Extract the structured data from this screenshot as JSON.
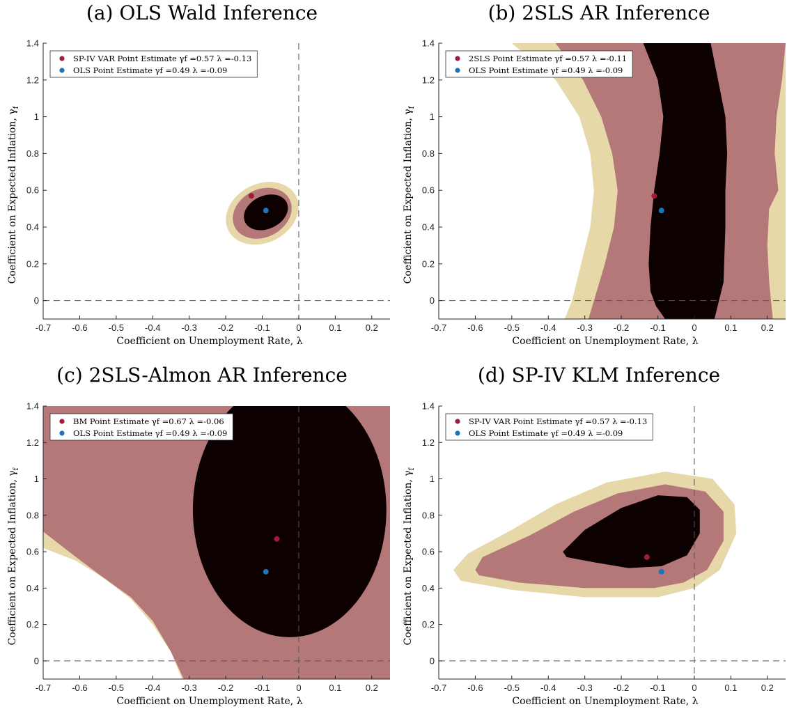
{
  "colors": {
    "inner": "#0d0000",
    "middle": "#b47878",
    "outer": "#e6d8a8",
    "marker_red": "#a01c38",
    "marker_blue": "#1f73b7",
    "ref_line": "#555555"
  },
  "chart_data": [
    {
      "id": "a",
      "type": "scatter",
      "title": "(a) OLS Wald Inference",
      "xlabel": "Coefficient on Unemployment Rate, λ",
      "ylabel": "Coefficient on Expected Inflation, γ",
      "ylabel_sub": "f",
      "xlim": [
        -0.7,
        0.25
      ],
      "ylim": [
        -0.1,
        1.4
      ],
      "xticks": [
        -0.7,
        -0.6,
        -0.5,
        -0.4,
        -0.3,
        -0.2,
        -0.1,
        0,
        0.1,
        0.2
      ],
      "yticks": [
        0,
        0.2,
        0.4,
        0.6,
        0.8,
        1,
        1.2,
        1.4
      ],
      "ref_lines": {
        "x": 0,
        "y": 0
      },
      "regions": [
        {
          "level": "outer",
          "shape": "ellipse",
          "center": [
            -0.1,
            0.475
          ],
          "radii": [
            0.104,
            0.16
          ],
          "angle_deg": 27
        },
        {
          "level": "middle",
          "shape": "ellipse",
          "center": [
            -0.1,
            0.475
          ],
          "radii": [
            0.084,
            0.13
          ],
          "angle_deg": 27
        },
        {
          "level": "inner",
          "shape": "ellipse",
          "center": [
            -0.09,
            0.48
          ],
          "radii": [
            0.063,
            0.09
          ],
          "angle_deg": 25
        }
      ],
      "points": [
        {
          "label": "SP-IV VAR Point Estimate γf =0.57 λ =-0.13",
          "x": -0.13,
          "y": 0.57,
          "color": "marker_red"
        },
        {
          "label": "OLS Point Estimate γf =0.49 λ =-0.09",
          "x": -0.09,
          "y": 0.49,
          "color": "marker_blue"
        }
      ]
    },
    {
      "id": "b",
      "type": "scatter",
      "title": "(b) 2SLS AR Inference",
      "xlabel": "Coefficient on Unemployment Rate, λ",
      "ylabel": "Coefficient on Expected Inflation, γ",
      "ylabel_sub": "f",
      "xlim": [
        -0.7,
        0.25
      ],
      "ylim": [
        -0.1,
        1.4
      ],
      "xticks": [
        -0.7,
        -0.6,
        -0.5,
        -0.4,
        -0.3,
        -0.2,
        -0.1,
        0,
        0.1,
        0.2
      ],
      "yticks": [
        0,
        0.2,
        0.4,
        0.6,
        0.8,
        1,
        1.2,
        1.4
      ],
      "ref_lines": {
        "x": null,
        "y": 0
      },
      "regions": [
        {
          "level": "outer",
          "shape": "polygon",
          "points": [
            [
              -0.5,
              1.4
            ],
            [
              -0.38,
              1.2
            ],
            [
              -0.315,
              1.0
            ],
            [
              -0.285,
              0.8
            ],
            [
              -0.275,
              0.6
            ],
            [
              -0.285,
              0.4
            ],
            [
              -0.31,
              0.2
            ],
            [
              -0.335,
              0
            ],
            [
              -0.355,
              -0.1
            ],
            [
              0.25,
              -0.1
            ],
            [
              0.25,
              1.4
            ]
          ]
        },
        {
          "level": "middle",
          "shape": "polygon",
          "points": [
            [
              -0.38,
              1.4
            ],
            [
              -0.305,
              1.2
            ],
            [
              -0.255,
              1.0
            ],
            [
              -0.225,
              0.8
            ],
            [
              -0.21,
              0.6
            ],
            [
              -0.22,
              0.4
            ],
            [
              -0.245,
              0.2
            ],
            [
              -0.275,
              0
            ],
            [
              -0.29,
              -0.1
            ],
            [
              0.215,
              -0.1
            ],
            [
              0.205,
              0.1
            ],
            [
              0.2,
              0.3
            ],
            [
              0.205,
              0.5
            ],
            [
              0.23,
              0.6
            ],
            [
              0.22,
              0.8
            ],
            [
              0.225,
              1.0
            ],
            [
              0.24,
              1.2
            ],
            [
              0.25,
              1.4
            ]
          ]
        },
        {
          "level": "inner",
          "shape": "polygon",
          "points": [
            [
              -0.14,
              1.4
            ],
            [
              -0.1,
              1.2
            ],
            [
              -0.085,
              1.0
            ],
            [
              -0.095,
              0.8
            ],
            [
              -0.11,
              0.6
            ],
            [
              -0.12,
              0.4
            ],
            [
              -0.125,
              0.2
            ],
            [
              -0.12,
              0.05
            ],
            [
              -0.105,
              -0.03
            ],
            [
              -0.08,
              -0.1
            ],
            [
              0.055,
              -0.1
            ],
            [
              0.08,
              0.1
            ],
            [
              0.085,
              0.4
            ],
            [
              0.085,
              0.6
            ],
            [
              0.09,
              0.8
            ],
            [
              0.085,
              1.0
            ],
            [
              0.065,
              1.2
            ],
            [
              0.045,
              1.4
            ]
          ]
        }
      ],
      "points": [
        {
          "label": "2SLS Point Estimate γf =0.57 λ =-0.11",
          "x": -0.11,
          "y": 0.57,
          "color": "marker_red"
        },
        {
          "label": "OLS Point Estimate γf =0.49 λ =-0.09",
          "x": -0.09,
          "y": 0.49,
          "color": "marker_blue"
        }
      ]
    },
    {
      "id": "c",
      "type": "scatter",
      "title": "(c) 2SLS-Almon AR Inference",
      "xlabel": "Coefficient on Unemployment Rate, λ",
      "ylabel": "Coefficient on Expected Inflation, γ",
      "ylabel_sub": "f",
      "xlim": [
        -0.7,
        0.25
      ],
      "ylim": [
        -0.1,
        1.4
      ],
      "xticks": [
        -0.7,
        -0.6,
        -0.5,
        -0.4,
        -0.3,
        -0.2,
        -0.1,
        0,
        0.1,
        0.2
      ],
      "yticks": [
        0,
        0.2,
        0.4,
        0.6,
        0.8,
        1,
        1.2,
        1.4
      ],
      "ref_lines": {
        "x": 0,
        "y": 0
      },
      "regions": [
        {
          "level": "outer",
          "shape": "polygon",
          "points": [
            [
              -0.7,
              1.4
            ],
            [
              0.25,
              1.4
            ],
            [
              0.25,
              -0.1
            ],
            [
              -0.32,
              -0.1
            ],
            [
              -0.35,
              0.05
            ],
            [
              -0.4,
              0.2
            ],
            [
              -0.46,
              0.34
            ],
            [
              -0.53,
              0.45
            ],
            [
              -0.61,
              0.55
            ],
            [
              -0.7,
              0.62
            ]
          ]
        },
        {
          "level": "middle",
          "shape": "polygon",
          "points": [
            [
              -0.7,
              1.4
            ],
            [
              0.25,
              1.4
            ],
            [
              0.25,
              -0.1
            ],
            [
              -0.315,
              -0.1
            ],
            [
              -0.35,
              0.05
            ],
            [
              -0.4,
              0.22
            ],
            [
              -0.46,
              0.35
            ],
            [
              -0.53,
              0.45
            ],
            [
              -0.61,
              0.57
            ],
            [
              -0.7,
              0.71
            ]
          ]
        },
        {
          "level": "inner",
          "shape": "ellipse",
          "center": [
            -0.025,
            0.83
          ],
          "radii": [
            0.265,
            0.7
          ],
          "angle_deg": 0
        }
      ],
      "points": [
        {
          "label": "BM Point Estimate γf =0.67 λ =-0.06",
          "x": -0.06,
          "y": 0.67,
          "color": "marker_red"
        },
        {
          "label": "OLS Point Estimate γf =0.49 λ =-0.09",
          "x": -0.09,
          "y": 0.49,
          "color": "marker_blue"
        }
      ]
    },
    {
      "id": "d",
      "type": "scatter",
      "title": "(d) SP-IV KLM Inference",
      "xlabel": "Coefficient on Unemployment Rate, λ",
      "ylabel": "Coefficient on Expected Inflation, γ",
      "ylabel_sub": "f",
      "xlim": [
        -0.7,
        0.25
      ],
      "ylim": [
        -0.1,
        1.4
      ],
      "xticks": [
        -0.7,
        -0.6,
        -0.5,
        -0.4,
        -0.3,
        -0.2,
        -0.1,
        0,
        0.1,
        0.2
      ],
      "yticks": [
        0,
        0.2,
        0.4,
        0.6,
        0.8,
        1,
        1.2,
        1.4
      ],
      "ref_lines": {
        "x": 0,
        "y": 0
      },
      "regions": [
        {
          "level": "outer",
          "shape": "polygon",
          "points": [
            [
              -0.66,
              0.5
            ],
            [
              -0.62,
              0.59
            ],
            [
              -0.5,
              0.72
            ],
            [
              -0.38,
              0.86
            ],
            [
              -0.24,
              0.98
            ],
            [
              -0.08,
              1.04
            ],
            [
              0.05,
              1.0
            ],
            [
              0.11,
              0.86
            ],
            [
              0.115,
              0.7
            ],
            [
              0.07,
              0.5
            ],
            [
              0.0,
              0.4
            ],
            [
              -0.1,
              0.35
            ],
            [
              -0.3,
              0.35
            ],
            [
              -0.5,
              0.39
            ],
            [
              -0.64,
              0.44
            ]
          ]
        },
        {
          "level": "middle",
          "shape": "polygon",
          "points": [
            [
              -0.6,
              0.5
            ],
            [
              -0.58,
              0.57
            ],
            [
              -0.45,
              0.69
            ],
            [
              -0.33,
              0.82
            ],
            [
              -0.21,
              0.92
            ],
            [
              -0.08,
              0.97
            ],
            [
              0.03,
              0.93
            ],
            [
              0.08,
              0.82
            ],
            [
              0.08,
              0.66
            ],
            [
              0.035,
              0.5
            ],
            [
              -0.03,
              0.43
            ],
            [
              -0.11,
              0.4
            ],
            [
              -0.3,
              0.4
            ],
            [
              -0.48,
              0.43
            ],
            [
              -0.59,
              0.47
            ]
          ]
        },
        {
          "level": "inner",
          "shape": "polygon",
          "points": [
            [
              -0.36,
              0.6
            ],
            [
              -0.3,
              0.72
            ],
            [
              -0.2,
              0.84
            ],
            [
              -0.1,
              0.91
            ],
            [
              -0.02,
              0.9
            ],
            [
              0.015,
              0.83
            ],
            [
              0.015,
              0.7
            ],
            [
              -0.02,
              0.58
            ],
            [
              -0.09,
              0.52
            ],
            [
              -0.18,
              0.51
            ],
            [
              -0.27,
              0.54
            ],
            [
              -0.35,
              0.57
            ]
          ]
        }
      ],
      "points": [
        {
          "label": "SP-IV VAR Point Estimate γf =0.57 λ =-0.13",
          "x": -0.13,
          "y": 0.57,
          "color": "marker_red"
        },
        {
          "label": "OLS Point Estimate γf =0.49 λ =-0.09",
          "x": -0.09,
          "y": 0.49,
          "color": "marker_blue"
        }
      ]
    }
  ]
}
